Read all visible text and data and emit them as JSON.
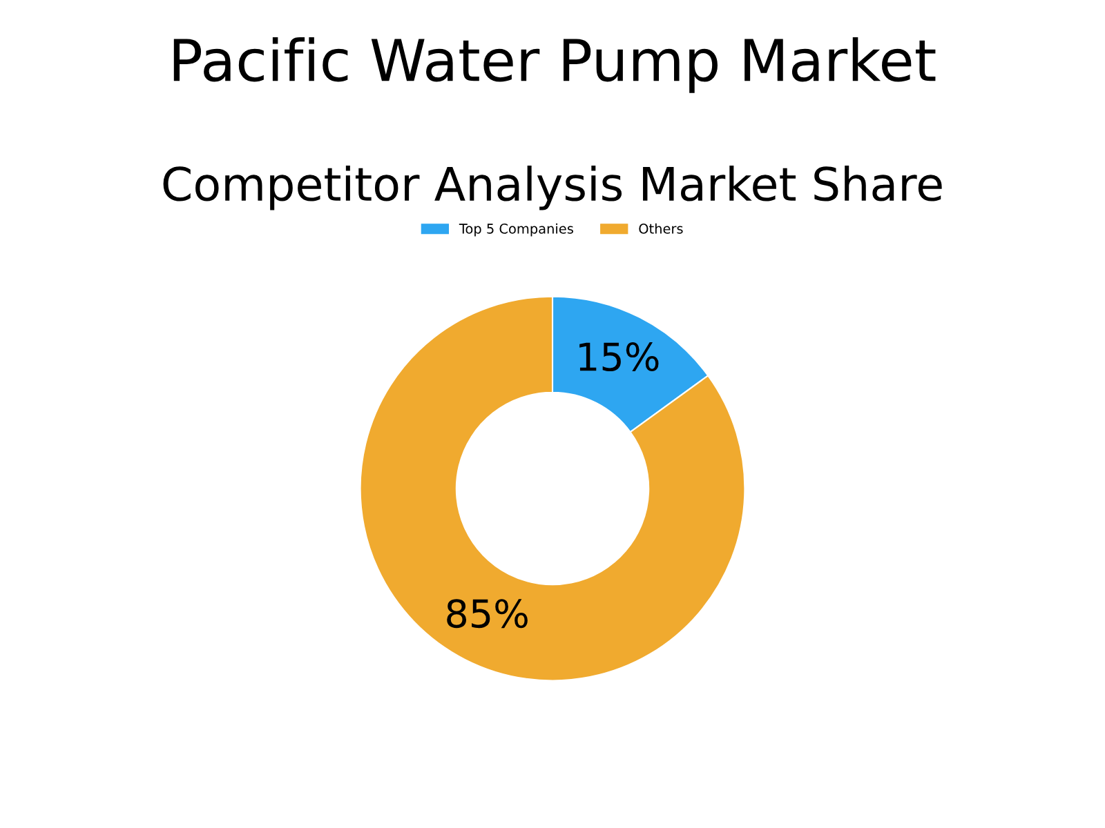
{
  "chart_data": {
    "type": "donut",
    "title": "Pacific Water Pump Market",
    "subtitle": "Competitor Analysis Market Share",
    "categories": [
      "Top 5 Companies",
      "Others"
    ],
    "values": [
      15,
      85
    ],
    "colors": [
      "#2ea6f1",
      "#f0aa2f"
    ],
    "value_labels": [
      "15%",
      "85%"
    ],
    "legend": "top"
  }
}
